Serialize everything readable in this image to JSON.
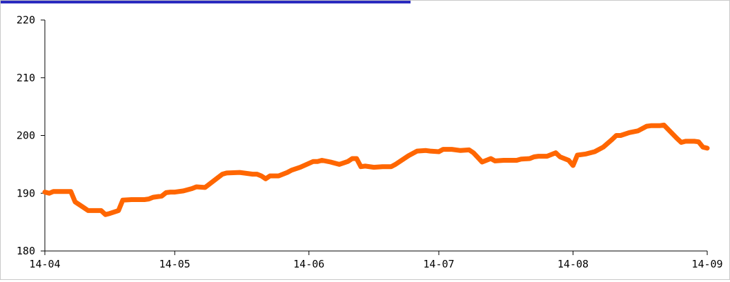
{
  "colors": {
    "line": "#ff6600",
    "accent": "#2b2bbf",
    "axis": "#000000",
    "frame": "#c8c8c8"
  },
  "chart_data": {
    "type": "line",
    "title": "",
    "xlabel": "",
    "ylabel": "",
    "grid": false,
    "legend": "none",
    "ylim": [
      180,
      220
    ],
    "yticks": [
      180,
      190,
      200,
      210,
      220
    ],
    "xlim": [
      "2014-04-01",
      "2014-09-01"
    ],
    "xtick_labels": [
      "14-04",
      "14-05",
      "14-06",
      "14-07",
      "14-08",
      "14-09"
    ],
    "xtick_dates": [
      "2014-04-01",
      "2014-05-01",
      "2014-06-01",
      "2014-07-01",
      "2014-08-01",
      "2014-09-01"
    ],
    "series": [
      {
        "x": [
          "2014-04-01",
          "2014-04-02",
          "2014-04-03",
          "2014-04-07",
          "2014-04-08",
          "2014-04-10",
          "2014-04-11",
          "2014-04-14",
          "2014-04-15",
          "2014-04-16",
          "2014-04-18",
          "2014-04-19",
          "2014-04-21",
          "2014-04-24",
          "2014-04-25",
          "2014-04-26",
          "2014-04-28",
          "2014-04-29",
          "2014-04-30",
          "2014-05-01",
          "2014-05-03",
          "2014-05-05",
          "2014-05-06",
          "2014-05-08",
          "2014-05-12",
          "2014-05-13",
          "2014-05-16",
          "2014-05-19",
          "2014-05-20",
          "2014-05-21",
          "2014-05-22",
          "2014-05-23",
          "2014-05-25",
          "2014-05-27",
          "2014-05-28",
          "2014-05-30",
          "2014-06-02",
          "2014-06-03",
          "2014-06-04",
          "2014-06-06",
          "2014-06-08",
          "2014-06-10",
          "2014-06-11",
          "2014-06-12",
          "2014-06-13",
          "2014-06-14",
          "2014-06-16",
          "2014-06-18",
          "2014-06-19",
          "2014-06-20",
          "2014-06-21",
          "2014-06-24",
          "2014-06-26",
          "2014-06-28",
          "2014-06-29",
          "2014-07-01",
          "2014-07-02",
          "2014-07-04",
          "2014-07-06",
          "2014-07-08",
          "2014-07-09",
          "2014-07-10",
          "2014-07-11",
          "2014-07-13",
          "2014-07-14",
          "2014-07-16",
          "2014-07-19",
          "2014-07-20",
          "2014-07-22",
          "2014-07-23",
          "2014-07-24",
          "2014-07-26",
          "2014-07-28",
          "2014-07-29",
          "2014-07-31",
          "2014-08-01",
          "2014-08-02",
          "2014-08-04",
          "2014-08-05",
          "2014-08-06",
          "2014-08-08",
          "2014-08-10",
          "2014-08-11",
          "2014-08-12",
          "2014-08-14",
          "2014-08-16",
          "2014-08-18",
          "2014-08-19",
          "2014-08-21",
          "2014-08-22",
          "2014-08-25",
          "2014-08-26",
          "2014-08-27",
          "2014-08-28",
          "2014-08-29",
          "2014-08-30",
          "2014-08-31",
          "2014-09-01"
        ],
        "values": [
          190.2,
          190.0,
          190.3,
          190.3,
          188.5,
          187.5,
          187.0,
          187.0,
          186.3,
          186.5,
          187.0,
          188.8,
          188.9,
          188.9,
          189.0,
          189.3,
          189.5,
          190.1,
          190.2,
          190.2,
          190.4,
          190.8,
          191.1,
          191.0,
          193.3,
          193.5,
          193.6,
          193.3,
          193.3,
          193.0,
          192.5,
          193.0,
          193.0,
          193.6,
          194.0,
          194.5,
          195.5,
          195.5,
          195.7,
          195.4,
          195.0,
          195.5,
          196.0,
          196.0,
          194.6,
          194.7,
          194.5,
          194.6,
          194.6,
          194.6,
          195.0,
          196.5,
          197.3,
          197.4,
          197.3,
          197.2,
          197.6,
          197.6,
          197.4,
          197.5,
          197.0,
          196.2,
          195.4,
          196.0,
          195.6,
          195.7,
          195.7,
          195.9,
          196.0,
          196.3,
          196.4,
          196.4,
          197.0,
          196.3,
          195.7,
          194.8,
          196.6,
          196.8,
          197.0,
          197.2,
          198.0,
          199.3,
          200.0,
          200.0,
          200.5,
          200.8,
          201.6,
          201.7,
          201.7,
          201.8,
          199.5,
          198.8,
          199.0,
          199.0,
          199.0,
          198.9,
          198.0,
          197.8
        ]
      }
    ]
  }
}
